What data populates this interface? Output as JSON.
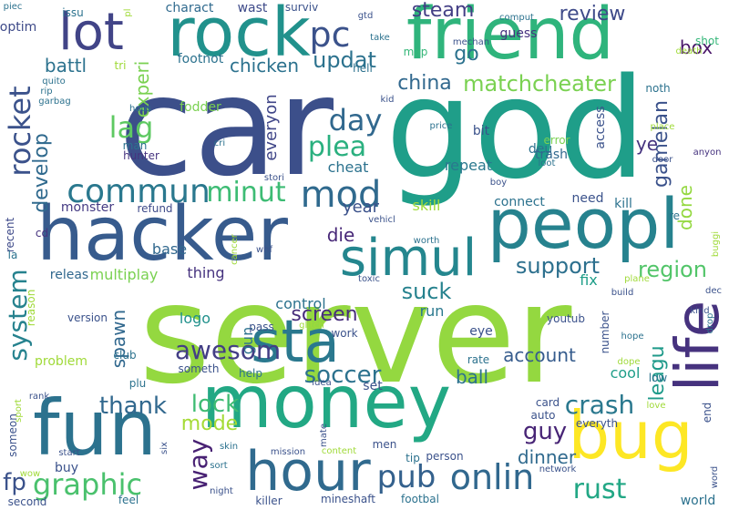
{
  "words": [
    {
      "text": "server",
      "color": "#94d840"
    },
    {
      "text": "car",
      "color": "#3c4f8a"
    },
    {
      "text": "god",
      "color": "#1f9e89"
    },
    {
      "text": "friend",
      "color": "#2fb47c"
    },
    {
      "text": "rock",
      "color": "#21918c"
    },
    {
      "text": "hacker",
      "color": "#375b8d"
    },
    {
      "text": "money",
      "color": "#22a884"
    },
    {
      "text": "fun",
      "color": "#2c728e"
    },
    {
      "text": "peopl",
      "color": "#26828e"
    },
    {
      "text": "hour",
      "color": "#306a8e"
    },
    {
      "text": "bug",
      "color": "#fde725"
    },
    {
      "text": "lot",
      "color": "#414487"
    },
    {
      "text": "life",
      "color": "#46327e"
    },
    {
      "text": "sta",
      "color": "#2a788e"
    },
    {
      "text": "simul",
      "color": "#24868e"
    },
    {
      "text": "mod",
      "color": "#306a8e"
    },
    {
      "text": "commun",
      "color": "#2a788e"
    },
    {
      "text": "onlin",
      "color": "#31688e"
    },
    {
      "text": "pub",
      "color": "#34618d"
    },
    {
      "text": "pc",
      "color": "#3b528b"
    },
    {
      "text": "rocket",
      "color": "#3b528b"
    },
    {
      "text": "graphic",
      "color": "#4ac16d"
    },
    {
      "text": "rust",
      "color": "#22a785"
    },
    {
      "text": "lag",
      "color": "#5ec962"
    },
    {
      "text": "day",
      "color": "#31688e"
    },
    {
      "text": "minut",
      "color": "#3dbc74"
    },
    {
      "text": "plea",
      "color": "#2ab07f"
    },
    {
      "text": "awesom",
      "color": "#433e85"
    },
    {
      "text": "system",
      "color": "#26828e"
    },
    {
      "text": "crash",
      "color": "#2a788e"
    },
    {
      "text": "guy",
      "color": "#482576"
    },
    {
      "text": "way",
      "color": "#482173"
    },
    {
      "text": "thank",
      "color": "#31688e"
    },
    {
      "text": "fp",
      "color": "#3b528b"
    },
    {
      "text": "soccer",
      "color": "#2c728e"
    },
    {
      "text": "lock",
      "color": "#3fbc73"
    },
    {
      "text": "mode",
      "color": "#a5db36"
    },
    {
      "text": "suck",
      "color": "#26828e"
    },
    {
      "text": "support",
      "color": "#2d708e"
    },
    {
      "text": "region",
      "color": "#52c569"
    },
    {
      "text": "updat",
      "color": "#2c728e"
    },
    {
      "text": "steam",
      "color": "#433e85"
    },
    {
      "text": "review",
      "color": "#3e4a89"
    },
    {
      "text": "go",
      "color": "#2c728e"
    },
    {
      "text": "china",
      "color": "#31688e"
    },
    {
      "text": "matchcheater",
      "color": "#7ad151"
    },
    {
      "text": "develop",
      "color": "#306a8e"
    },
    {
      "text": "chicken",
      "color": "#2c728e"
    },
    {
      "text": "battl",
      "color": "#2c728e"
    },
    {
      "text": "experi",
      "color": "#7ad151"
    },
    {
      "text": "gamelan",
      "color": "#3b528b"
    },
    {
      "text": "leagu",
      "color": "#1f9a8a"
    },
    {
      "text": "spawn",
      "color": "#31688e"
    },
    {
      "text": "screen",
      "color": "#472d7b"
    },
    {
      "text": "account",
      "color": "#365c8d"
    },
    {
      "text": "dinner",
      "color": "#306a8e"
    },
    {
      "text": "ball",
      "color": "#2c728e"
    },
    {
      "text": "done",
      "color": "#94d840"
    },
    {
      "text": "die",
      "color": "#482878"
    },
    {
      "text": "box",
      "color": "#481467"
    },
    {
      "text": "everyon",
      "color": "#404688"
    },
    {
      "text": "year",
      "color": "#3b528b"
    },
    {
      "text": "ye",
      "color": "#46337f"
    },
    {
      "text": "repeat",
      "color": "#2a788e"
    },
    {
      "text": "control",
      "color": "#2c728e"
    },
    {
      "text": "multiplay",
      "color": "#7ad151"
    },
    {
      "text": "thing",
      "color": "#46337f"
    },
    {
      "text": "base",
      "color": "#31688e"
    },
    {
      "text": "gun",
      "color": "#2c728e"
    },
    {
      "text": "logo",
      "color": "#21918c"
    },
    {
      "text": "run",
      "color": "#2a788e"
    },
    {
      "text": "cool",
      "color": "#1f9e89"
    },
    {
      "text": "fix",
      "color": "#1f9e89"
    },
    {
      "text": "cheat",
      "color": "#2c728e"
    },
    {
      "text": "connect",
      "color": "#2c728e"
    },
    {
      "text": "skill",
      "color": "#a0da39"
    },
    {
      "text": "monster",
      "color": "#443a83"
    },
    {
      "text": "releas",
      "color": "#31688e"
    },
    {
      "text": "eye",
      "color": "#3b528b"
    },
    {
      "text": "footnot",
      "color": "#2c728e"
    },
    {
      "text": "fodder",
      "color": "#7ad151"
    },
    {
      "text": "charact",
      "color": "#306a8e"
    },
    {
      "text": "wast",
      "color": "#3e4a89"
    },
    {
      "text": "surviv",
      "color": "#3b528b"
    },
    {
      "text": "guess",
      "color": "#46337f"
    },
    {
      "text": "shot",
      "color": "#35b779"
    },
    {
      "text": "optim",
      "color": "#3e4a89"
    },
    {
      "text": "issu",
      "color": "#2c728e"
    },
    {
      "text": "tri",
      "color": "#a0da39"
    },
    {
      "text": "map",
      "color": "#35b779"
    },
    {
      "text": "hell",
      "color": "#2c728e"
    },
    {
      "text": "need",
      "color": "#3b528b"
    },
    {
      "text": "kill",
      "color": "#2c728e"
    },
    {
      "text": "access",
      "color": "#3b528b"
    },
    {
      "text": "noth",
      "color": "#2c728e"
    },
    {
      "text": "deu",
      "color": "#2c728e"
    },
    {
      "text": "error",
      "color": "#7ad151"
    },
    {
      "text": "trash",
      "color": "#31688e"
    },
    {
      "text": "bit",
      "color": "#3b528b"
    },
    {
      "text": "man",
      "color": "#2c728e"
    },
    {
      "text": "hunter",
      "color": "#46337f"
    },
    {
      "text": "refund",
      "color": "#3e4a89"
    },
    {
      "text": "recent",
      "color": "#3e4a89"
    },
    {
      "text": "la",
      "color": "#2c728e"
    },
    {
      "text": "cd",
      "color": "#46337f"
    },
    {
      "text": "stori",
      "color": "#3b528b"
    },
    {
      "text": "cri",
      "color": "#2c728e"
    },
    {
      "text": "hous",
      "color": "#2c728e"
    },
    {
      "text": "garbag",
      "color": "#2c728e"
    },
    {
      "text": "rip",
      "color": "#2c728e"
    },
    {
      "text": "quito",
      "color": "#2c728e"
    },
    {
      "text": "piec",
      "color": "#2c728e"
    },
    {
      "text": "pl",
      "color": "#a0da39"
    },
    {
      "text": "gtd",
      "color": "#3b528b"
    },
    {
      "text": "take",
      "color": "#2c728e"
    },
    {
      "text": "mechan",
      "color": "#3b528b"
    },
    {
      "text": "comput",
      "color": "#2c728e"
    },
    {
      "text": "anyon",
      "color": "#46337f"
    },
    {
      "text": "death",
      "color": "#a0da39"
    },
    {
      "text": "kid",
      "color": "#3b528b"
    },
    {
      "text": "price",
      "color": "#2c728e"
    },
    {
      "text": "place",
      "color": "#a0da39"
    },
    {
      "text": "door",
      "color": "#3b528b"
    },
    {
      "text": "loot",
      "color": "#2c728e"
    },
    {
      "text": "boy",
      "color": "#3b528b"
    },
    {
      "text": "vehicl",
      "color": "#3b528b"
    },
    {
      "text": "re",
      "color": "#2c728e"
    },
    {
      "text": "buggi",
      "color": "#a0da39"
    },
    {
      "text": "worth",
      "color": "#2c728e"
    },
    {
      "text": "cancer",
      "color": "#a0da39"
    },
    {
      "text": "whf",
      "color": "#3b528b"
    },
    {
      "text": "toxic",
      "color": "#3b528b"
    },
    {
      "text": "plane",
      "color": "#a0da39"
    },
    {
      "text": "build",
      "color": "#3b528b"
    },
    {
      "text": "dec",
      "color": "#3b528b"
    },
    {
      "text": "kind",
      "color": "#3b528b"
    },
    {
      "text": "drop",
      "color": "#2c728e"
    },
    {
      "text": "hope",
      "color": "#2c728e"
    },
    {
      "text": "youtub",
      "color": "#3b528b"
    },
    {
      "text": "number",
      "color": "#3b528b"
    },
    {
      "text": "dope",
      "color": "#a0da39"
    },
    {
      "text": "low",
      "color": "#2c728e"
    },
    {
      "text": "love",
      "color": "#a0da39"
    },
    {
      "text": "end",
      "color": "#3b528b"
    },
    {
      "text": "card",
      "color": "#3b528b"
    },
    {
      "text": "auto",
      "color": "#3b528b"
    },
    {
      "text": "everyth",
      "color": "#3b528b"
    },
    {
      "text": "tip",
      "color": "#2c728e"
    },
    {
      "text": "person",
      "color": "#3b528b"
    },
    {
      "text": "network",
      "color": "#3b528b"
    },
    {
      "text": "men",
      "color": "#3b528b"
    },
    {
      "text": "content",
      "color": "#a0da39"
    },
    {
      "text": "mate",
      "color": "#3b528b"
    },
    {
      "text": "idea",
      "color": "#3b528b"
    },
    {
      "text": "set",
      "color": "#3b528b"
    },
    {
      "text": "rate",
      "color": "#2c728e"
    },
    {
      "text": "work",
      "color": "#3b528b"
    },
    {
      "text": "glitch",
      "color": "#a0da39"
    },
    {
      "text": "pass",
      "color": "#3b528b"
    },
    {
      "text": "help",
      "color": "#2c728e"
    },
    {
      "text": "someth",
      "color": "#3b528b"
    },
    {
      "text": "club",
      "color": "#2c728e"
    },
    {
      "text": "plu",
      "color": "#2c728e"
    },
    {
      "text": "version",
      "color": "#3b528b"
    },
    {
      "text": "problem",
      "color": "#a0da39"
    },
    {
      "text": "reason",
      "color": "#a0da39"
    },
    {
      "text": "rank",
      "color": "#3b528b"
    },
    {
      "text": "sport",
      "color": "#a0da39"
    },
    {
      "text": "someon",
      "color": "#3b528b"
    },
    {
      "text": "start",
      "color": "#3b528b"
    },
    {
      "text": "wow",
      "color": "#a0da39"
    },
    {
      "text": "buy",
      "color": "#3b528b"
    },
    {
      "text": "six",
      "color": "#3b528b"
    },
    {
      "text": "skin",
      "color": "#2c728e"
    },
    {
      "text": "sort",
      "color": "#2c728e"
    },
    {
      "text": "mission",
      "color": "#3b528b"
    },
    {
      "text": "night",
      "color": "#3b528b"
    },
    {
      "text": "feel",
      "color": "#2c728e"
    },
    {
      "text": "second",
      "color": "#3b528b"
    },
    {
      "text": "killer",
      "color": "#3b528b"
    },
    {
      "text": "mineshaft",
      "color": "#3b528b"
    },
    {
      "text": "footbal",
      "color": "#2c728e"
    },
    {
      "text": "word",
      "color": "#3b528b"
    },
    {
      "text": "world",
      "color": "#2c728e"
    }
  ]
}
